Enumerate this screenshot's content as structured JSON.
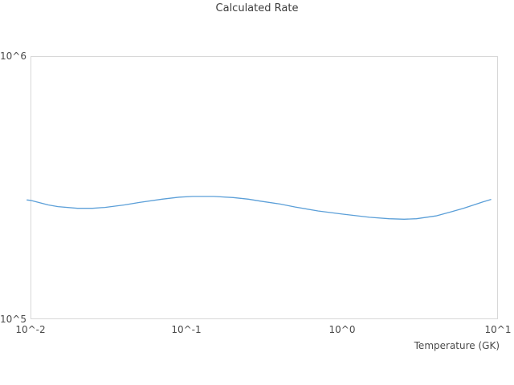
{
  "chart_data": {
    "type": "line",
    "title": "Calculated Rate",
    "xlabel": "Temperature (GK)",
    "ylabel": "",
    "x_scale": "log",
    "y_scale": "log",
    "xlim": [
      0.01,
      10
    ],
    "ylim": [
      100000,
      1000000
    ],
    "x_tick_values": [
      0.01,
      0.1,
      1,
      10
    ],
    "x_tick_labels": [
      "10^-2",
      "10^-1",
      "10^0",
      "10^1"
    ],
    "y_tick_values": [
      100000,
      1000000
    ],
    "y_tick_labels": [
      "10^5",
      "10^6"
    ],
    "grid": false,
    "legend": false,
    "line_color": "#5b9fd8",
    "frame_color": "#d8d8d8",
    "text_color": "#4a4a4a",
    "series": [
      {
        "name": "calculated-rate",
        "points": [
          [
            0.0095,
            284000
          ],
          [
            0.01,
            283000
          ],
          [
            0.013,
            272000
          ],
          [
            0.015,
            268000
          ],
          [
            0.02,
            264000
          ],
          [
            0.025,
            264000
          ],
          [
            0.03,
            266000
          ],
          [
            0.04,
            272000
          ],
          [
            0.05,
            278000
          ],
          [
            0.07,
            286000
          ],
          [
            0.09,
            291000
          ],
          [
            0.11,
            293000
          ],
          [
            0.15,
            293000
          ],
          [
            0.2,
            290000
          ],
          [
            0.25,
            286000
          ],
          [
            0.3,
            281000
          ],
          [
            0.4,
            274000
          ],
          [
            0.5,
            267000
          ],
          [
            0.7,
            258000
          ],
          [
            1.0,
            251000
          ],
          [
            1.5,
            244000
          ],
          [
            2.0,
            241000
          ],
          [
            2.5,
            240000
          ],
          [
            3.0,
            241000
          ],
          [
            4.0,
            247000
          ],
          [
            5.0,
            256000
          ],
          [
            6.0,
            264000
          ],
          [
            7.0,
            272000
          ],
          [
            8.0,
            279000
          ],
          [
            9.0,
            285000
          ]
        ]
      }
    ]
  }
}
